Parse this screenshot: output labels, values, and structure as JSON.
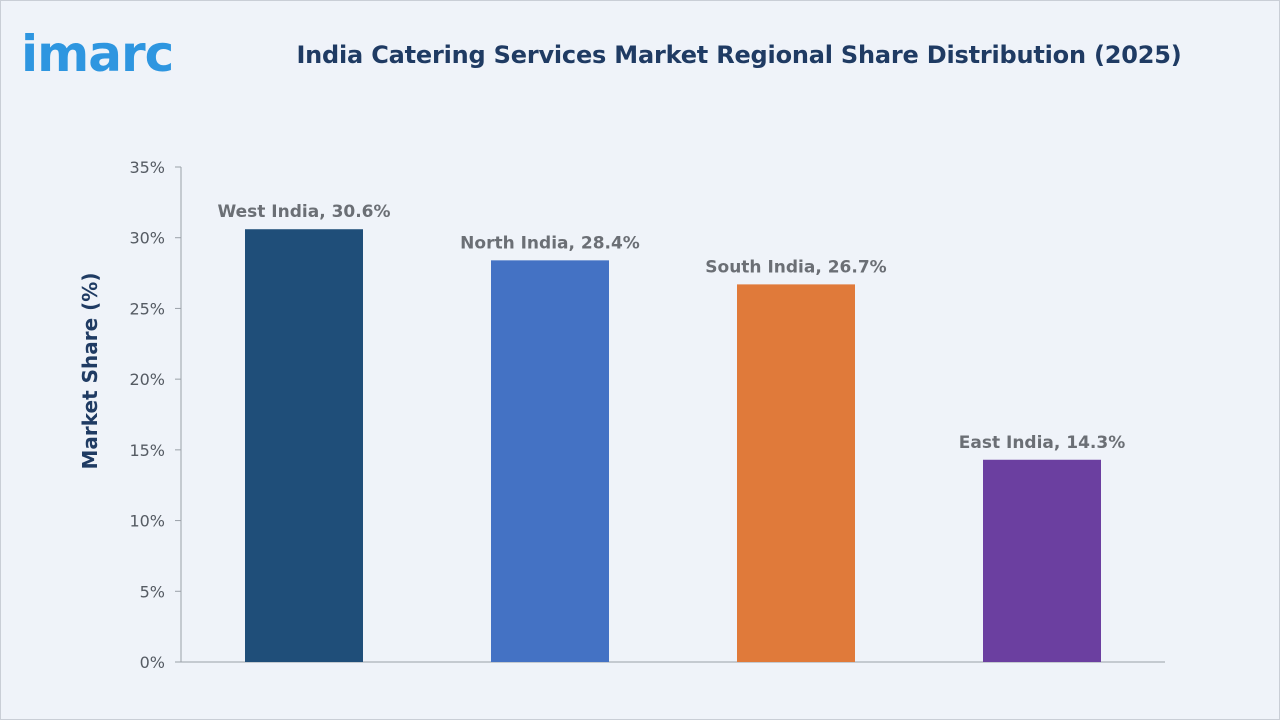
{
  "brand": {
    "logo_text": "imarc",
    "logo_color": "#2e96e0"
  },
  "chart_data": {
    "type": "bar",
    "title": "India Catering Services Market Regional Share Distribution (2025)",
    "xlabel": "",
    "ylabel": "Market Share (%)",
    "ylim": [
      0,
      35
    ],
    "yticks": [
      0,
      5,
      10,
      15,
      20,
      25,
      30,
      35
    ],
    "ytick_labels": [
      "0%",
      "5%",
      "10%",
      "15%",
      "20%",
      "25%",
      "30%",
      "35%"
    ],
    "grid": false,
    "categories": [
      "West India",
      "North India",
      "South India",
      "East India"
    ],
    "values": [
      30.6,
      28.4,
      26.7,
      14.3
    ],
    "data_labels": [
      "West India, 30.6%",
      "North India, 28.4%",
      "South India, 26.7%",
      "East India, 14.3%"
    ],
    "colors": [
      "#1f4e79",
      "#4472c4",
      "#e07a3a",
      "#6b3fa0"
    ]
  }
}
